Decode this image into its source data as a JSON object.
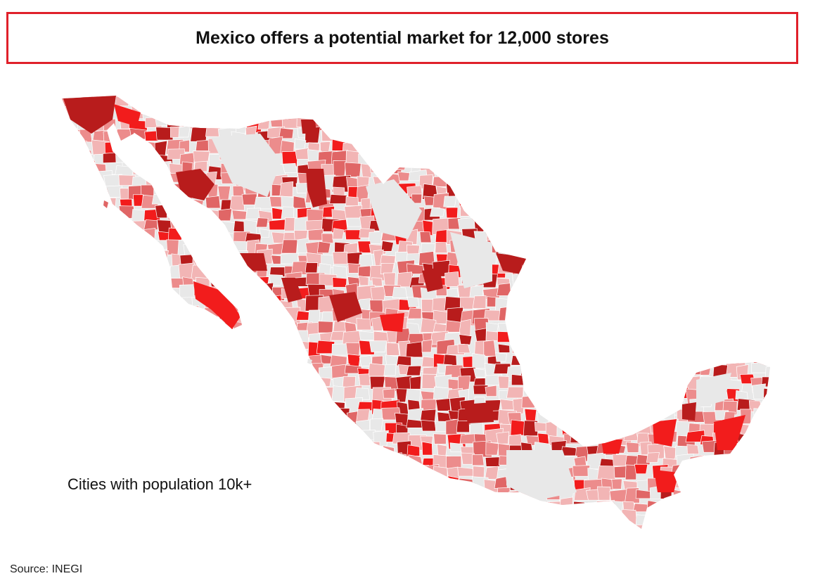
{
  "title": "Mexico offers a potential market for 12,000 stores",
  "caption": "Cities with population 10k+",
  "source": "Source: INEGI",
  "palette": {
    "none": "#e8e8e8",
    "light": "#f2b5b5",
    "mid": "#ec8c8c",
    "strong": "#e06666",
    "bright": "#f21c1c",
    "dark": "#b81c1c",
    "border": "#ffffff",
    "title_border": "#e0202a"
  }
}
